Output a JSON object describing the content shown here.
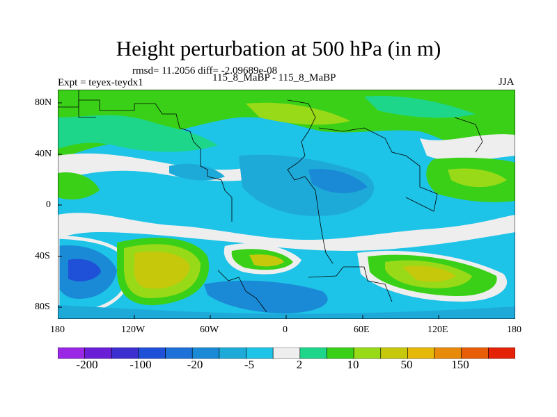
{
  "title": "Height perturbation at 500 hPa (in m)",
  "stats": "rmsd= 11.2056 diff= -2.09689e-08",
  "expt": "Expt = teyex-teydx1",
  "case": "115_8_MaBP - 115_8_MaBP",
  "season": "JJA",
  "y_ticks": [
    "80N",
    "40N",
    "0",
    "40S",
    "80S"
  ],
  "x_ticks": [
    "180",
    "120W",
    "60W",
    "0",
    "60E",
    "120E",
    "180"
  ],
  "colorbar": {
    "colors": [
      "#9a26e6",
      "#6a1fd6",
      "#3c2fd0",
      "#1f50d8",
      "#1c70d8",
      "#1a8ad6",
      "#1eaad8",
      "#1ec3e8",
      "#eeeeee",
      "#1ed68a",
      "#3ad018",
      "#98da18",
      "#c6c80c",
      "#e6b80a",
      "#e88a0a",
      "#e85e08",
      "#e42206"
    ],
    "labels": [
      "-200",
      "-100",
      "-20",
      "-5",
      "2",
      "10",
      "50",
      "150"
    ]
  }
}
